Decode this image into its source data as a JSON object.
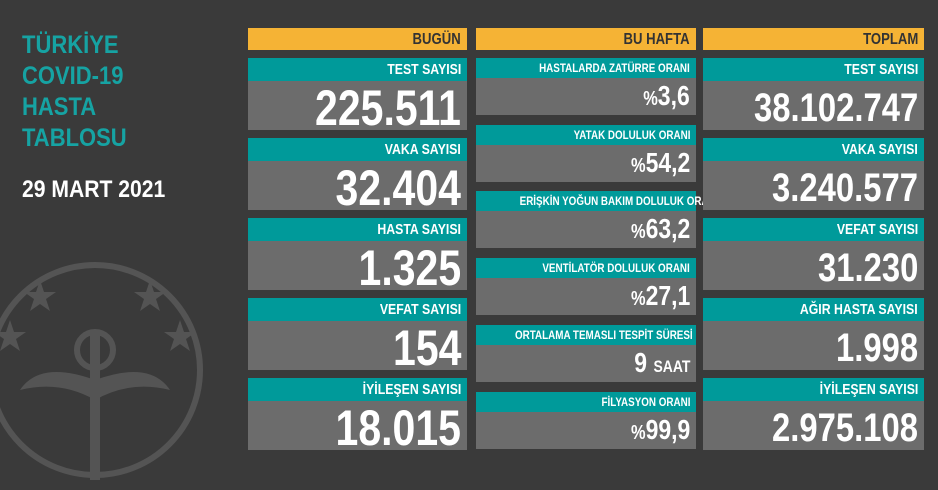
{
  "title": [
    "TÜRKİYE",
    "COVID-19",
    "HASTA",
    "TABLOSU"
  ],
  "date": "29 MART 2021",
  "colors": {
    "background": "#3a3a3a",
    "header": "#f5b335",
    "label": "#009a9a",
    "value_bg": "#6c6c6c",
    "title": "#16a3a3"
  },
  "today": {
    "header": "BUGÜN",
    "items": [
      {
        "label": "TEST SAYISI",
        "value": "225.511"
      },
      {
        "label": "VAKA SAYISI",
        "value": "32.404"
      },
      {
        "label": "HASTA SAYISI",
        "value": "1.325"
      },
      {
        "label": "VEFAT SAYISI",
        "value": "154"
      },
      {
        "label": "İYİLEŞEN SAYISI",
        "value": "18.015"
      }
    ]
  },
  "week": {
    "header": "BU HAFTA",
    "items": [
      {
        "label": "HASTALARDA ZATÜRRE ORANI",
        "prefix": "%",
        "value": "3,6"
      },
      {
        "label": "YATAK DOLULUK ORANI",
        "prefix": "%",
        "value": "54,2"
      },
      {
        "label": "ERİŞKİN YOĞUN BAKIM DOLULUK ORANI",
        "prefix": "%",
        "value": "63,2"
      },
      {
        "label": "VENTİLATÖR DOLULUK ORANI",
        "prefix": "%",
        "value": "27,1"
      },
      {
        "label": "ORTALAMA TEMASLI TESPİT SÜRESİ",
        "value": "9",
        "suffix": "SAAT"
      },
      {
        "label": "FİLYASYON ORANI",
        "prefix": "%",
        "value": "99,9"
      }
    ]
  },
  "total": {
    "header": "TOPLAM",
    "items": [
      {
        "label": "TEST SAYISI",
        "value": "38.102.747"
      },
      {
        "label": "VAKA SAYISI",
        "value": "3.240.577"
      },
      {
        "label": "VEFAT SAYISI",
        "value": "31.230"
      },
      {
        "label": "AĞIR HASTA SAYISI",
        "value": "1.998"
      },
      {
        "label": "İYİLEŞEN SAYISI",
        "value": "2.975.108"
      }
    ]
  }
}
